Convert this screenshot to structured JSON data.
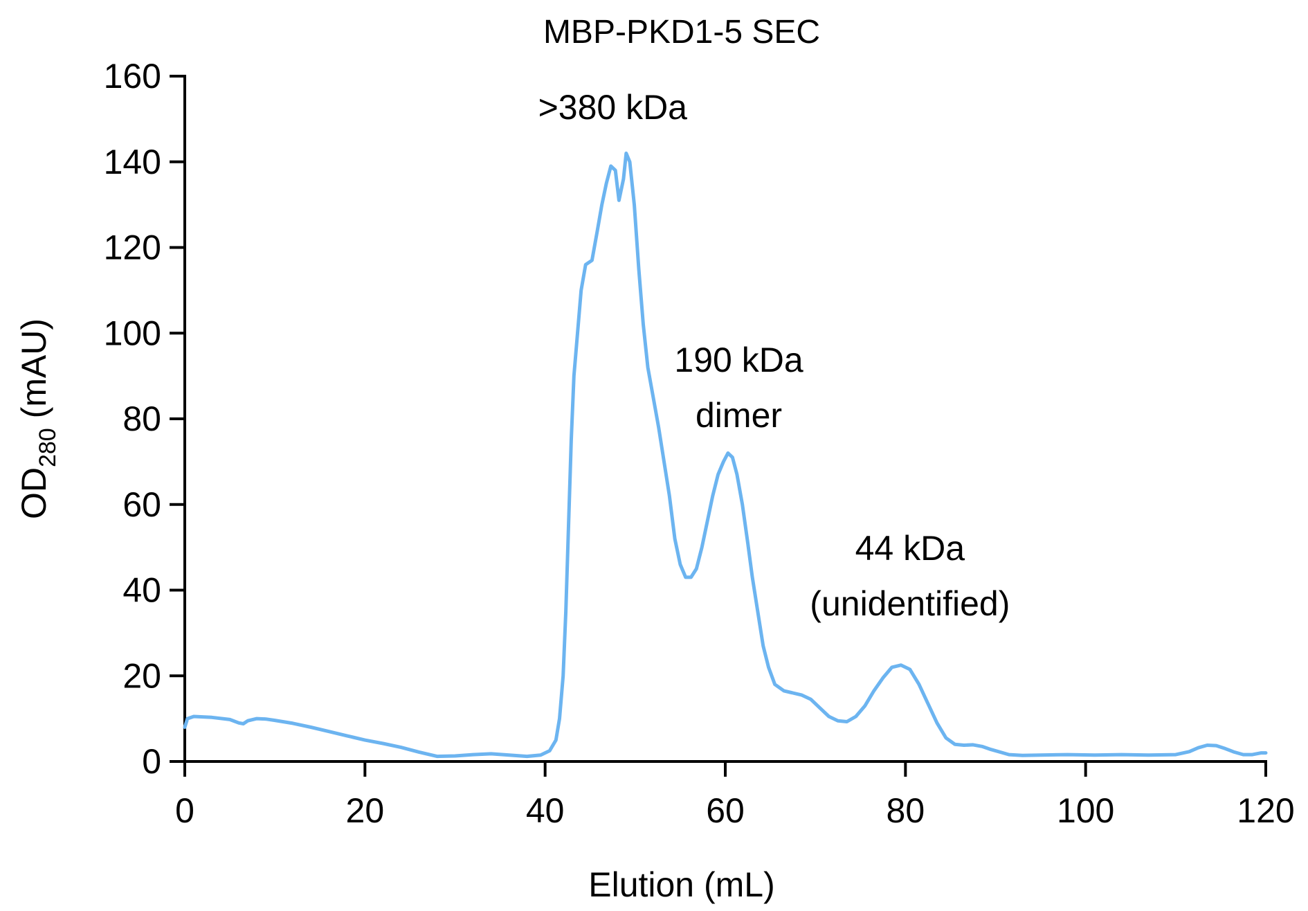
{
  "chart_data": {
    "type": "line",
    "title": "MBP-PKD1-5 SEC",
    "xlabel": "Elution (mL)",
    "ylabel": {
      "main": "OD",
      "subscript": "280",
      "unit": " (mAU)"
    },
    "xlim": [
      0,
      120
    ],
    "ylim": [
      0,
      160
    ],
    "x_ticks": [
      0,
      20,
      40,
      60,
      80,
      100,
      120
    ],
    "y_ticks": [
      0,
      20,
      40,
      60,
      80,
      100,
      120,
      140,
      160
    ],
    "grid": false,
    "legend": "none",
    "series": [
      {
        "color": "#6cb4f0",
        "points": [
          [
            0,
            8
          ],
          [
            0.3,
            10
          ],
          [
            1,
            10.5
          ],
          [
            3,
            10.3
          ],
          [
            5,
            9.8
          ],
          [
            6,
            9.0
          ],
          [
            6.5,
            8.8
          ],
          [
            7,
            9.5
          ],
          [
            8,
            10.0
          ],
          [
            9,
            9.9
          ],
          [
            10,
            9.6
          ],
          [
            12,
            8.9
          ],
          [
            14,
            8.0
          ],
          [
            16,
            7.0
          ],
          [
            18,
            6.0
          ],
          [
            20,
            5.0
          ],
          [
            22,
            4.2
          ],
          [
            24,
            3.3
          ],
          [
            26,
            2.2
          ],
          [
            28,
            1.2
          ],
          [
            30,
            1.3
          ],
          [
            32,
            1.6
          ],
          [
            34,
            1.8
          ],
          [
            36,
            1.5
          ],
          [
            38,
            1.2
          ],
          [
            39.5,
            1.5
          ],
          [
            40.5,
            2.5
          ],
          [
            41.2,
            5
          ],
          [
            41.6,
            10
          ],
          [
            42,
            20
          ],
          [
            42.3,
            35
          ],
          [
            42.6,
            55
          ],
          [
            42.9,
            75
          ],
          [
            43.2,
            90
          ],
          [
            43.6,
            100
          ],
          [
            44,
            110
          ],
          [
            44.5,
            116
          ],
          [
            45.2,
            117
          ],
          [
            45.8,
            124
          ],
          [
            46.3,
            130
          ],
          [
            46.8,
            135
          ],
          [
            47.3,
            139
          ],
          [
            47.8,
            138
          ],
          [
            48.2,
            131
          ],
          [
            48.7,
            136
          ],
          [
            49.0,
            142
          ],
          [
            49.4,
            140
          ],
          [
            49.9,
            130
          ],
          [
            50.4,
            115
          ],
          [
            50.9,
            102
          ],
          [
            51.4,
            92
          ],
          [
            52,
            85
          ],
          [
            52.6,
            78
          ],
          [
            53.2,
            70
          ],
          [
            53.8,
            62
          ],
          [
            54.4,
            52
          ],
          [
            55,
            46
          ],
          [
            55.6,
            43
          ],
          [
            56.2,
            43
          ],
          [
            56.8,
            45
          ],
          [
            57.4,
            50
          ],
          [
            58,
            56
          ],
          [
            58.6,
            62
          ],
          [
            59.2,
            67
          ],
          [
            59.8,
            70
          ],
          [
            60.3,
            72
          ],
          [
            60.8,
            71
          ],
          [
            61.3,
            67
          ],
          [
            61.9,
            60
          ],
          [
            62.5,
            51
          ],
          [
            63,
            43
          ],
          [
            63.6,
            35
          ],
          [
            64.2,
            27
          ],
          [
            64.8,
            22
          ],
          [
            65.5,
            18
          ],
          [
            66.5,
            16.5
          ],
          [
            67.5,
            16
          ],
          [
            68.5,
            15.5
          ],
          [
            69.5,
            14.5
          ],
          [
            70.5,
            12.5
          ],
          [
            71.5,
            10.5
          ],
          [
            72.5,
            9.5
          ],
          [
            73.5,
            9.3
          ],
          [
            74.5,
            10.5
          ],
          [
            75.5,
            13
          ],
          [
            76.5,
            16.5
          ],
          [
            77.5,
            19.5
          ],
          [
            78.5,
            22
          ],
          [
            79.5,
            22.5
          ],
          [
            80.5,
            21.5
          ],
          [
            81.5,
            18
          ],
          [
            82.5,
            13.5
          ],
          [
            83.5,
            9
          ],
          [
            84.5,
            5.5
          ],
          [
            85.5,
            4
          ],
          [
            86.5,
            3.8
          ],
          [
            87.5,
            3.9
          ],
          [
            88.5,
            3.5
          ],
          [
            89.5,
            2.8
          ],
          [
            90.5,
            2.2
          ],
          [
            91.5,
            1.6
          ],
          [
            93,
            1.4
          ],
          [
            95,
            1.5
          ],
          [
            98,
            1.6
          ],
          [
            101,
            1.5
          ],
          [
            104,
            1.6
          ],
          [
            107,
            1.5
          ],
          [
            110,
            1.6
          ],
          [
            111.5,
            2.3
          ],
          [
            112.5,
            3.2
          ],
          [
            113.5,
            3.8
          ],
          [
            114.5,
            3.7
          ],
          [
            115.5,
            3.0
          ],
          [
            116.5,
            2.2
          ],
          [
            117.5,
            1.6
          ],
          [
            118.5,
            1.6
          ],
          [
            119.5,
            2.0
          ],
          [
            120,
            2.0
          ]
        ]
      }
    ],
    "annotations": [
      {
        "lines": [
          ">380 kDa"
        ],
        "x": 47.5,
        "y": 150
      },
      {
        "lines": [
          "190 kDa",
          "dimer"
        ],
        "x": 61.5,
        "y": 91
      },
      {
        "lines": [
          "44 kDa",
          "(unidentified)"
        ],
        "x": 80.5,
        "y": 47
      }
    ]
  }
}
